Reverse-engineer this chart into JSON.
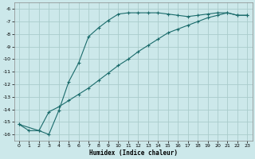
{
  "xlabel": "Humidex (Indice chaleur)",
  "bg_color": "#cce8ea",
  "grid_color": "#aacccc",
  "line_color": "#1a6b6b",
  "xlim": [
    -0.5,
    23.5
  ],
  "ylim": [
    -16.5,
    -5.5
  ],
  "xticks": [
    0,
    1,
    2,
    3,
    4,
    5,
    6,
    7,
    8,
    9,
    10,
    11,
    12,
    13,
    14,
    15,
    16,
    17,
    18,
    19,
    20,
    21,
    22,
    23
  ],
  "yticks": [
    -6,
    -7,
    -8,
    -9,
    -10,
    -11,
    -12,
    -13,
    -14,
    -15,
    -16
  ],
  "line1_x": [
    0,
    1,
    2,
    3,
    4,
    5,
    6,
    7,
    8,
    9,
    10,
    11,
    12,
    13,
    14,
    15,
    16,
    17,
    18,
    19,
    20,
    21,
    22,
    23
  ],
  "line1_y": [
    -15.2,
    -15.7,
    -15.7,
    -16.0,
    -14.1,
    -11.8,
    -10.3,
    -8.2,
    -7.5,
    -6.9,
    -6.4,
    -6.3,
    -6.3,
    -6.3,
    -6.3,
    -6.4,
    -6.5,
    -6.6,
    -6.5,
    -6.4,
    -6.3,
    -6.3,
    -6.5,
    -6.5
  ],
  "line2_x": [
    0,
    2,
    3,
    4,
    5,
    6,
    7,
    8,
    9,
    10,
    11,
    12,
    13,
    14,
    15,
    16,
    17,
    18,
    19,
    20,
    21,
    22,
    23
  ],
  "line2_y": [
    -15.2,
    -15.7,
    -14.2,
    -13.8,
    -13.3,
    -12.8,
    -12.3,
    -11.7,
    -11.1,
    -10.5,
    -10.0,
    -9.4,
    -8.9,
    -8.4,
    -7.9,
    -7.6,
    -7.3,
    -7.0,
    -6.7,
    -6.5,
    -6.3,
    -6.5,
    -6.5
  ],
  "marker": "+"
}
